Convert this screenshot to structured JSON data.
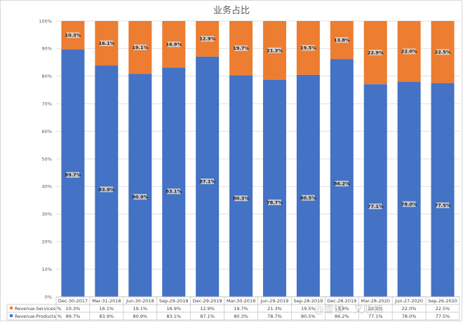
{
  "chart_data": {
    "type": "bar",
    "stacked": true,
    "title": "业务占比",
    "xlabel": "",
    "ylabel": "",
    "ylim": [
      0,
      100
    ],
    "y_ticks": [
      "0%",
      "10%",
      "20%",
      "30%",
      "40%",
      "50%",
      "60%",
      "70%",
      "80%",
      "90%",
      "100%"
    ],
    "grid": true,
    "legend": "bottom-left-table",
    "categories": [
      "Dec-30-2017",
      "Mar-31-2018",
      "Jun-30-2018",
      "Sep-29-2018",
      "Dec-29-2018",
      "Mar-30-2019",
      "Jun-29-2019",
      "Sep-28-2019",
      "Dec-28-2019",
      "Mar-28-2020",
      "Jun-27-2020",
      "Sep-26-2020"
    ],
    "series": [
      {
        "name": "Revenue-Products %",
        "color": "#4472c4",
        "values": [
          89.7,
          83.9,
          80.9,
          83.1,
          87.1,
          80.3,
          78.7,
          80.5,
          86.2,
          77.1,
          78.0,
          77.5
        ],
        "labels": [
          "89.7%",
          "83.9%",
          "80.9%",
          "83.1%",
          "87.1%",
          "80.3%",
          "78.7%",
          "80.5%",
          "86.2%",
          "77.1%",
          "78.0%",
          "77.5%"
        ]
      },
      {
        "name": "Revenue-Services %",
        "color": "#ed7d31",
        "values": [
          10.3,
          16.1,
          19.1,
          16.9,
          12.9,
          19.7,
          21.3,
          19.5,
          13.8,
          22.9,
          22.0,
          22.5
        ],
        "labels": [
          "10.3%",
          "16.1%",
          "19.1%",
          "16.9%",
          "12.9%",
          "19.7%",
          "21.3%",
          "19.5%",
          "13.8%",
          "22.9%",
          "22.0%",
          "22.5%"
        ]
      }
    ],
    "watermark": "@雪球：又听棉"
  }
}
